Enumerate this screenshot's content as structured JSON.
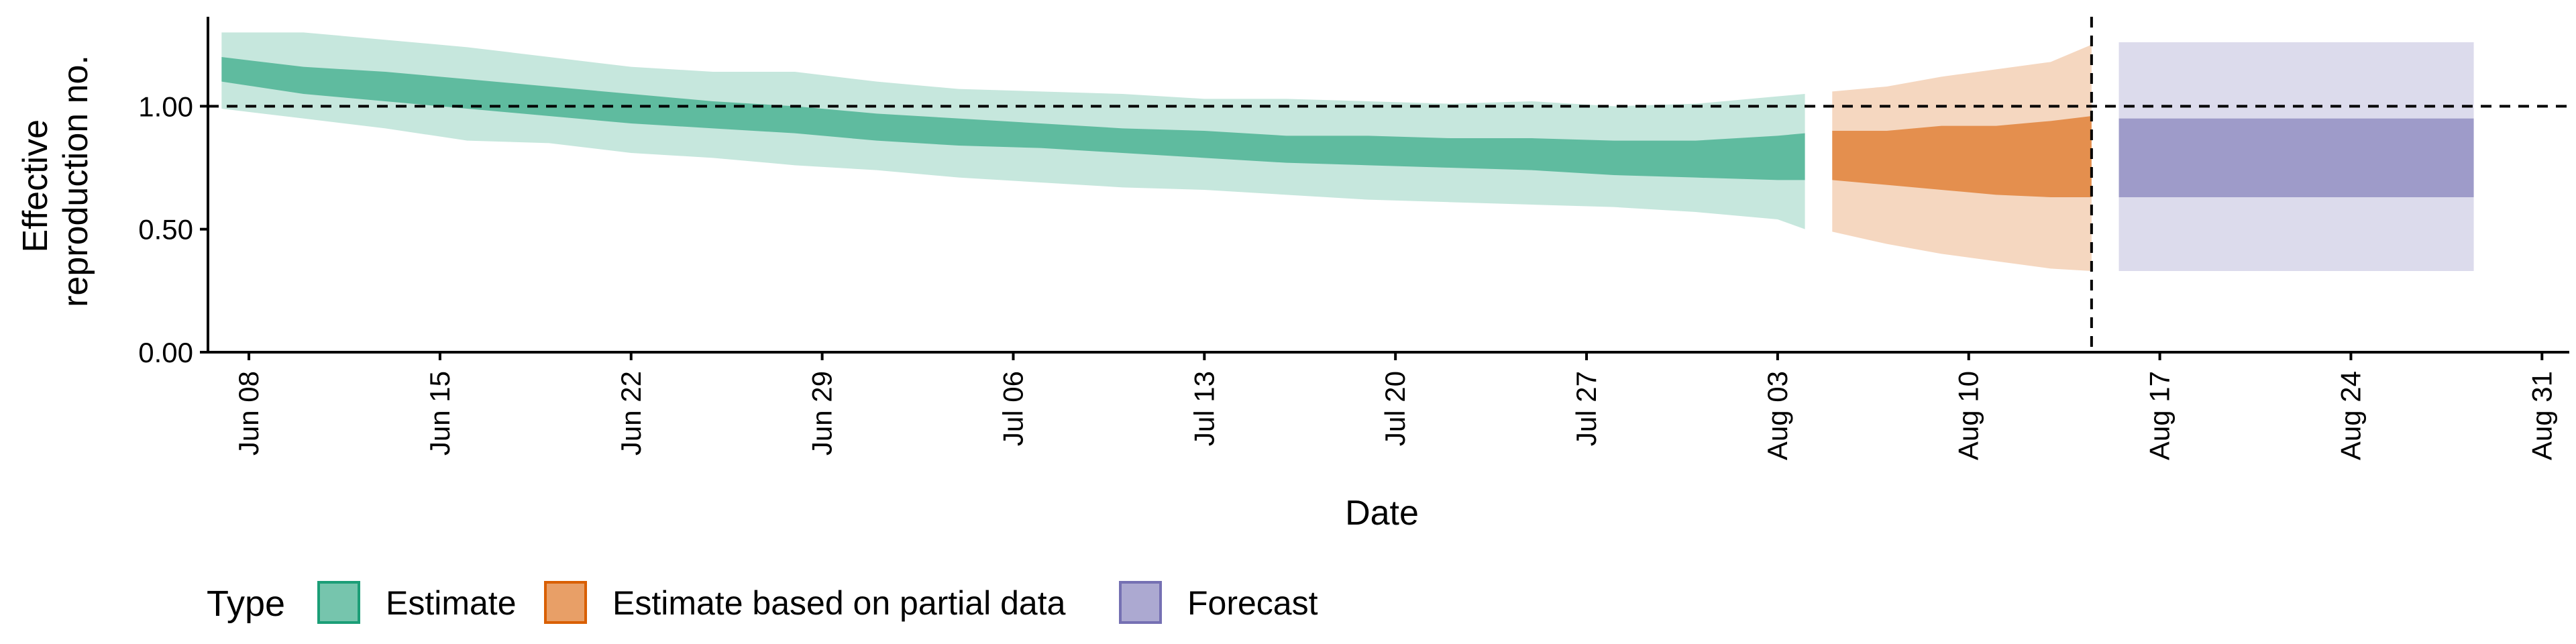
{
  "chart_data": {
    "type": "area",
    "title": "",
    "xlabel": "Date",
    "ylabel_lines": [
      "Effective",
      "reproduction no."
    ],
    "ylim": [
      0,
      1.35
    ],
    "yticks": [
      0,
      0.5,
      1.0
    ],
    "ytick_labels": [
      "0.00",
      "0.50",
      "1.00"
    ],
    "xlim": [
      -1.5,
      85
    ],
    "xticks": [
      0,
      7,
      14,
      21,
      28,
      35,
      42,
      49,
      56,
      63,
      70,
      77,
      84
    ],
    "xtick_labels": [
      "Jun 08",
      "Jun 15",
      "Jun 22",
      "Jun 29",
      "Jul 06",
      "Jul 13",
      "Jul 20",
      "Jul 27",
      "Aug 03",
      "Aug 10",
      "Aug 17",
      "Aug 24",
      "Aug 31"
    ],
    "reference_line_y": 1.0,
    "forecast_start_x": 67.5,
    "legend": {
      "title": "Type",
      "position": "bottom",
      "entries": [
        {
          "label": "Estimate",
          "color": "#1b9e77"
        },
        {
          "label": "Estimate based on partial data",
          "color": "#d95f02"
        },
        {
          "label": "Forecast",
          "color": "#7570b3"
        }
      ]
    },
    "series": [
      {
        "name": "Estimate",
        "color": "#1b9e77",
        "x": [
          -1,
          2,
          5,
          8,
          11,
          14,
          17,
          20,
          23,
          26,
          29,
          32,
          35,
          38,
          41,
          44,
          47,
          50,
          53,
          56,
          57
        ],
        "outer_lower": [
          0.99,
          0.95,
          0.91,
          0.86,
          0.85,
          0.81,
          0.79,
          0.76,
          0.74,
          0.71,
          0.69,
          0.67,
          0.66,
          0.64,
          0.62,
          0.61,
          0.6,
          0.59,
          0.57,
          0.54,
          0.5
        ],
        "outer_upper": [
          1.3,
          1.3,
          1.27,
          1.24,
          1.2,
          1.16,
          1.14,
          1.14,
          1.1,
          1.07,
          1.06,
          1.05,
          1.03,
          1.03,
          1.02,
          1.01,
          1.02,
          1.0,
          1.01,
          1.04,
          1.05
        ],
        "inner_lower": [
          1.1,
          1.05,
          1.02,
          0.99,
          0.96,
          0.93,
          0.91,
          0.89,
          0.86,
          0.84,
          0.83,
          0.81,
          0.79,
          0.77,
          0.76,
          0.75,
          0.74,
          0.72,
          0.71,
          0.7,
          0.7
        ],
        "inner_upper": [
          1.2,
          1.16,
          1.14,
          1.11,
          1.08,
          1.05,
          1.02,
          1.0,
          0.97,
          0.95,
          0.93,
          0.91,
          0.9,
          0.88,
          0.88,
          0.87,
          0.87,
          0.86,
          0.86,
          0.88,
          0.89
        ]
      },
      {
        "name": "Estimate based on partial data",
        "color": "#d95f02",
        "x": [
          58,
          60,
          62,
          64,
          66,
          67.5
        ],
        "outer_lower": [
          0.49,
          0.44,
          0.4,
          0.37,
          0.34,
          0.33
        ],
        "outer_upper": [
          1.06,
          1.08,
          1.12,
          1.15,
          1.18,
          1.25
        ],
        "inner_lower": [
          0.7,
          0.68,
          0.66,
          0.64,
          0.63,
          0.63
        ],
        "inner_upper": [
          0.9,
          0.9,
          0.92,
          0.92,
          0.94,
          0.96
        ]
      },
      {
        "name": "Forecast",
        "color": "#7570b3",
        "x": [
          68.5,
          81.5
        ],
        "outer_lower": [
          0.33,
          0.33
        ],
        "outer_upper": [
          1.26,
          1.26
        ],
        "inner_lower": [
          0.63,
          0.63
        ],
        "inner_upper": [
          0.95,
          0.95
        ]
      }
    ]
  }
}
